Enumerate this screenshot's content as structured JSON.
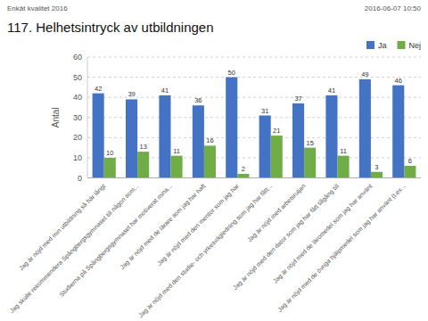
{
  "chart_data": {
    "type": "bar",
    "title": "117. Helhetsintryck av utbildningen",
    "annotations": [
      "Enkät kvalitet 2016",
      "2016-06-07 10:50"
    ],
    "y_label": "Antal",
    "categories": [
      "Jag är nöjd med min utbildning så här långt",
      "Jag skulle rekommendera Spångbergsgymnaset till någon som...",
      "Studierna på Spångbergsgymnaset har motiverat mina...",
      "Jag är nöjd med de lärare som jag har haft",
      "Jag är nöjd med den mentor som jag har",
      "Jag är nöjd med den studie- och yrkesvägledning som jag har fått...",
      "Jag är nöjd med arbetsruljan",
      "Jag är nöjd med den dator som jag har fått tillgång till",
      "Jag är nöjd med de läromedel som jag har använt",
      "Jag är nöjd med de övriga hjälpmedel som jag har använt (t.ex..."
    ],
    "series": [
      {
        "name": "Ja",
        "color": "#4472C4",
        "values": [
          42,
          39,
          41,
          36,
          50,
          31,
          37,
          41,
          49,
          46
        ]
      },
      {
        "name": "Nej",
        "color": "#70AD47",
        "values": [
          10,
          13,
          11,
          16,
          2,
          21,
          15,
          11,
          3,
          6
        ]
      }
    ],
    "ylim": [
      0,
      60
    ],
    "yticks": [
      0,
      10,
      20,
      30,
      40,
      50,
      60
    ],
    "grid": true,
    "legend": "upper right",
    "data_labels": true
  }
}
